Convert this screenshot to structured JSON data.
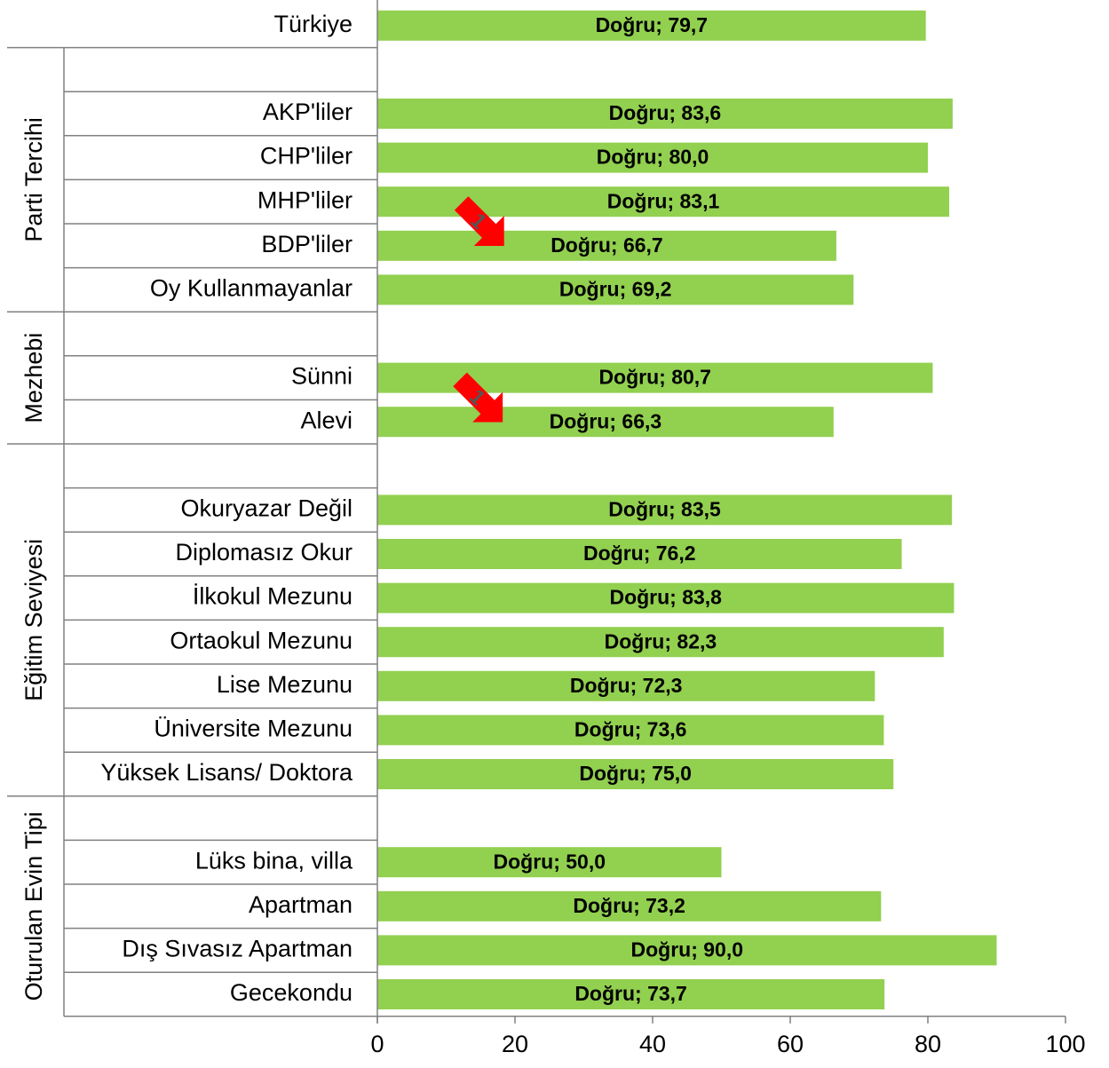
{
  "chart_data": {
    "type": "bar",
    "orientation": "horizontal",
    "xlim": [
      0,
      100
    ],
    "xticks": [
      0,
      20,
      40,
      60,
      80,
      100
    ],
    "bar_color": "#92d050",
    "highlight_color": "#ff0000",
    "rows": [
      {
        "label": "Türkiye",
        "value": 79.7,
        "data_label": "Doğru; 79,7"
      },
      {
        "label": "",
        "value": null,
        "data_label": ""
      },
      {
        "label": "AKP'liler",
        "value": 83.6,
        "data_label": "Doğru; 83,6"
      },
      {
        "label": "CHP'liler",
        "value": 80.0,
        "data_label": "Doğru; 80,0"
      },
      {
        "label": "MHP'liler",
        "value": 83.1,
        "data_label": "Doğru; 83,1"
      },
      {
        "label": "BDP'liler",
        "value": 66.7,
        "data_label": "Doğru; 66,7",
        "arrow": true
      },
      {
        "label": "Oy Kullanmayanlar",
        "value": 69.2,
        "data_label": "Doğru; 69,2"
      },
      {
        "label": "",
        "value": null,
        "data_label": ""
      },
      {
        "label": "Sünni",
        "value": 80.7,
        "data_label": "Doğru; 80,7"
      },
      {
        "label": "Alevi",
        "value": 66.3,
        "data_label": "Doğru; 66,3",
        "arrow": true
      },
      {
        "label": "",
        "value": null,
        "data_label": ""
      },
      {
        "label": "Okuryazar Değil",
        "value": 83.5,
        "data_label": "Doğru; 83,5"
      },
      {
        "label": "Diplomasız Okur",
        "value": 76.2,
        "data_label": "Doğru; 76,2"
      },
      {
        "label": "İlkokul Mezunu",
        "value": 83.8,
        "data_label": "Doğru; 83,8"
      },
      {
        "label": "Ortaokul Mezunu",
        "value": 82.3,
        "data_label": "Doğru; 82,3"
      },
      {
        "label": "Lise Mezunu",
        "value": 72.3,
        "data_label": "Doğru; 72,3"
      },
      {
        "label": "Üniversite Mezunu",
        "value": 73.6,
        "data_label": "Doğru; 73,6"
      },
      {
        "label": "Yüksek Lisans/ Doktora",
        "value": 75.0,
        "data_label": "Doğru; 75,0"
      },
      {
        "label": "",
        "value": null,
        "data_label": ""
      },
      {
        "label": "Lüks bina, villa",
        "value": 50.0,
        "data_label": "Doğru; 50,0"
      },
      {
        "label": "Apartman",
        "value": 73.2,
        "data_label": "Doğru; 73,2"
      },
      {
        "label": "Dış Sıvasız Apartman",
        "value": 90.0,
        "data_label": "Doğru; 90,0"
      },
      {
        "label": "Gecekondu",
        "value": 73.7,
        "data_label": "Doğru; 73,7"
      }
    ],
    "groups": [
      {
        "label": "Parti Tercihi",
        "from": 1,
        "to": 6
      },
      {
        "label": "Mezhebi",
        "from": 7,
        "to": 9
      },
      {
        "label": "Eğitim Seviyesi",
        "from": 10,
        "to": 17
      },
      {
        "label": "Oturulan Evin Tipi",
        "from": 18,
        "to": 22
      }
    ],
    "arrow_text": "1"
  }
}
